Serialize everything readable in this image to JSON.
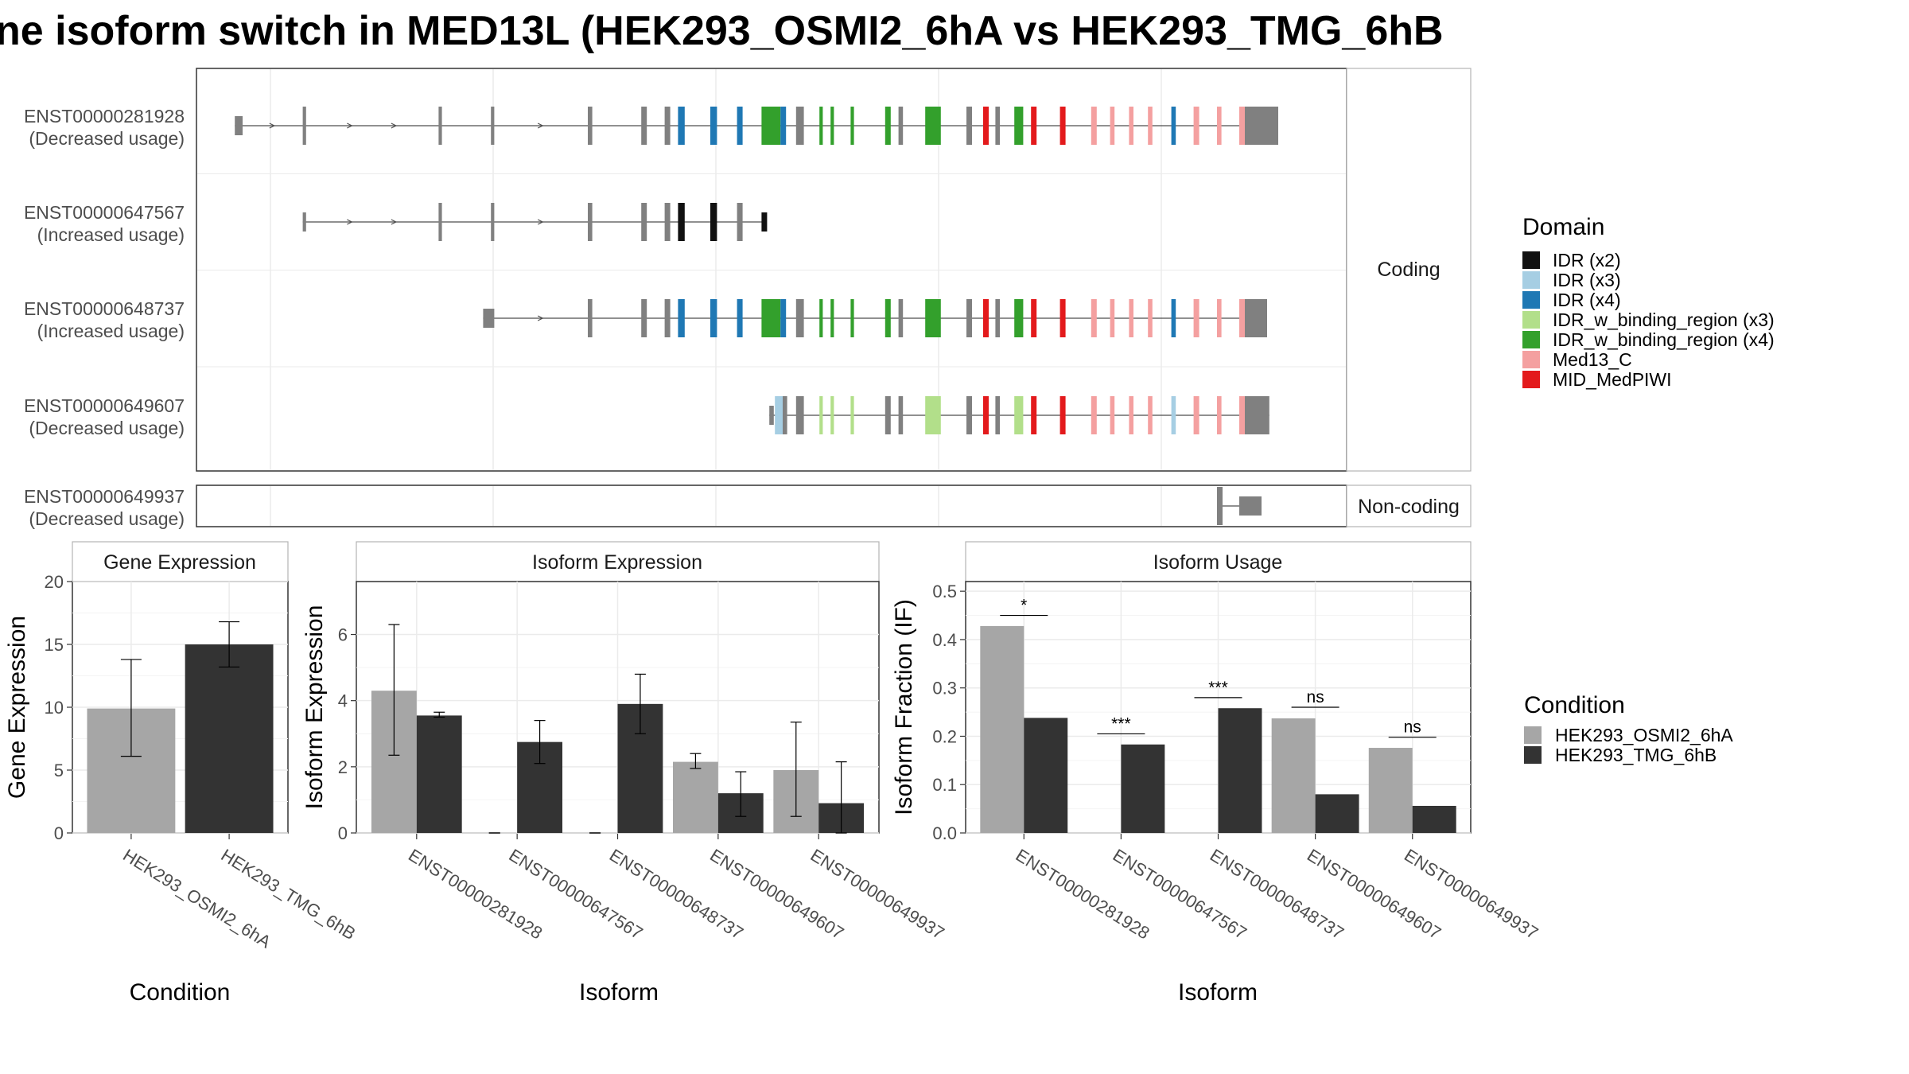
{
  "title": "ne isoform switch in MED13L (HEK293_OSMI2_6hA vs HEK293_TMG_6hB",
  "colors": {
    "condA": "#a6a6a6",
    "condB": "#333333",
    "exon": "#808080",
    "grid": "#ebebeb",
    "domains": {
      "IDR (x2)": "#111111",
      "IDR (x3)": "#a6cee3",
      "IDR (x4)": "#1f78b4",
      "IDR_w_binding_region (x3)": "#b2df8a",
      "IDR_w_binding_region (x4)": "#33a02c",
      "Med13_C": "#f4a0a0",
      "MID_MedPIWI": "#e31a1c"
    }
  },
  "structure": {
    "strips": {
      "coding": "Coding",
      "noncoding": "Non-coding"
    },
    "isoforms": [
      {
        "id": "ENST00000281928",
        "usage": "(Decreased usage)",
        "group": "coding",
        "tss": 0.018,
        "tes": 0.95,
        "utr5_end": 0.025,
        "utr3_start": 0.94,
        "exons": [
          [
            0.018,
            0.025,
            "n"
          ],
          [
            0.079,
            0.082,
            "n"
          ],
          [
            0.201,
            0.204,
            "n"
          ],
          [
            0.248,
            0.251,
            "n"
          ],
          [
            0.335,
            0.339,
            "n"
          ],
          [
            0.383,
            0.388,
            "n"
          ],
          [
            0.404,
            0.409,
            "n"
          ],
          [
            0.416,
            0.422,
            "IDR (x4)"
          ],
          [
            0.445,
            0.451,
            "IDR (x4)"
          ],
          [
            0.469,
            0.474,
            "IDR (x4)"
          ],
          [
            0.491,
            0.508,
            "IDR_w_binding_region (x4)"
          ],
          [
            0.508,
            0.513,
            "IDR (x4)"
          ],
          [
            0.522,
            0.529,
            "n"
          ],
          [
            0.543,
            0.546,
            "IDR_w_binding_region (x4)"
          ],
          [
            0.553,
            0.556,
            "IDR_w_binding_region (x4)"
          ],
          [
            0.571,
            0.574,
            "IDR_w_binding_region (x4)"
          ],
          [
            0.602,
            0.607,
            "IDR_w_binding_region (x4)"
          ],
          [
            0.614,
            0.618,
            "n"
          ],
          [
            0.638,
            0.652,
            "IDR_w_binding_region (x4)"
          ],
          [
            0.675,
            0.68,
            "n"
          ],
          [
            0.69,
            0.695,
            "MID_MedPIWI"
          ],
          [
            0.701,
            0.705,
            "n"
          ],
          [
            0.718,
            0.726,
            "IDR_w_binding_region (x4)"
          ],
          [
            0.733,
            0.738,
            "MID_MedPIWI"
          ],
          [
            0.759,
            0.764,
            "MID_MedPIWI"
          ],
          [
            0.787,
            0.792,
            "Med13_C"
          ],
          [
            0.804,
            0.808,
            "Med13_C"
          ],
          [
            0.821,
            0.825,
            "Med13_C"
          ],
          [
            0.838,
            0.842,
            "Med13_C"
          ],
          [
            0.859,
            0.863,
            "IDR (x4)"
          ],
          [
            0.879,
            0.884,
            "Med13_C"
          ],
          [
            0.9,
            0.904,
            "Med13_C"
          ],
          [
            0.92,
            0.925,
            "Med13_C"
          ],
          [
            0.925,
            0.955,
            "n"
          ]
        ]
      },
      {
        "id": "ENST00000647567",
        "usage": "(Increased usage)",
        "group": "coding",
        "tss": 0.079,
        "tes": 0.495,
        "utr5_end": 0.082,
        "utr3_start": 0.49,
        "exons": [
          [
            0.079,
            0.082,
            "n"
          ],
          [
            0.201,
            0.204,
            "n"
          ],
          [
            0.248,
            0.251,
            "n"
          ],
          [
            0.335,
            0.339,
            "n"
          ],
          [
            0.383,
            0.388,
            "n"
          ],
          [
            0.404,
            0.409,
            "n"
          ],
          [
            0.416,
            0.422,
            "IDR (x2)"
          ],
          [
            0.445,
            0.451,
            "IDR (x2)"
          ],
          [
            0.469,
            0.474,
            "n"
          ],
          [
            0.491,
            0.496,
            "IDR (x2)"
          ]
        ]
      },
      {
        "id": "ENST00000648737",
        "usage": "(Increased usage)",
        "group": "coding",
        "tss": 0.241,
        "tes": 0.945,
        "utr5_end": 0.251,
        "utr3_start": 0.93,
        "exons": [
          [
            0.241,
            0.251,
            "n"
          ],
          [
            0.335,
            0.339,
            "n"
          ],
          [
            0.383,
            0.388,
            "n"
          ],
          [
            0.404,
            0.409,
            "n"
          ],
          [
            0.416,
            0.422,
            "IDR (x4)"
          ],
          [
            0.445,
            0.451,
            "IDR (x4)"
          ],
          [
            0.469,
            0.474,
            "IDR (x4)"
          ],
          [
            0.491,
            0.508,
            "IDR_w_binding_region (x4)"
          ],
          [
            0.508,
            0.513,
            "IDR (x4)"
          ],
          [
            0.522,
            0.529,
            "n"
          ],
          [
            0.543,
            0.546,
            "IDR_w_binding_region (x4)"
          ],
          [
            0.553,
            0.556,
            "IDR_w_binding_region (x4)"
          ],
          [
            0.571,
            0.574,
            "IDR_w_binding_region (x4)"
          ],
          [
            0.602,
            0.607,
            "IDR_w_binding_region (x4)"
          ],
          [
            0.614,
            0.618,
            "n"
          ],
          [
            0.638,
            0.652,
            "IDR_w_binding_region (x4)"
          ],
          [
            0.675,
            0.68,
            "n"
          ],
          [
            0.69,
            0.695,
            "MID_MedPIWI"
          ],
          [
            0.701,
            0.705,
            "n"
          ],
          [
            0.718,
            0.726,
            "IDR_w_binding_region (x4)"
          ],
          [
            0.733,
            0.738,
            "MID_MedPIWI"
          ],
          [
            0.759,
            0.764,
            "MID_MedPIWI"
          ],
          [
            0.787,
            0.792,
            "Med13_C"
          ],
          [
            0.804,
            0.808,
            "Med13_C"
          ],
          [
            0.821,
            0.825,
            "Med13_C"
          ],
          [
            0.838,
            0.842,
            "Med13_C"
          ],
          [
            0.859,
            0.863,
            "IDR (x4)"
          ],
          [
            0.879,
            0.884,
            "Med13_C"
          ],
          [
            0.9,
            0.904,
            "Med13_C"
          ],
          [
            0.92,
            0.925,
            "Med13_C"
          ],
          [
            0.925,
            0.945,
            "n"
          ]
        ]
      },
      {
        "id": "ENST00000649607",
        "usage": "(Decreased usage)",
        "group": "coding",
        "tss": 0.498,
        "tes": 0.947,
        "utr5_end": 0.502,
        "utr3_start": 0.93,
        "exons": [
          [
            0.498,
            0.502,
            "n"
          ],
          [
            0.503,
            0.51,
            "IDR (x3)"
          ],
          [
            0.51,
            0.514,
            "n"
          ],
          [
            0.522,
            0.529,
            "n"
          ],
          [
            0.543,
            0.546,
            "IDR_w_binding_region (x3)"
          ],
          [
            0.553,
            0.556,
            "IDR_w_binding_region (x3)"
          ],
          [
            0.571,
            0.574,
            "IDR_w_binding_region (x3)"
          ],
          [
            0.602,
            0.607,
            "n"
          ],
          [
            0.614,
            0.618,
            "n"
          ],
          [
            0.638,
            0.652,
            "IDR_w_binding_region (x3)"
          ],
          [
            0.675,
            0.68,
            "n"
          ],
          [
            0.69,
            0.695,
            "MID_MedPIWI"
          ],
          [
            0.701,
            0.705,
            "n"
          ],
          [
            0.718,
            0.726,
            "IDR_w_binding_region (x3)"
          ],
          [
            0.733,
            0.738,
            "MID_MedPIWI"
          ],
          [
            0.759,
            0.764,
            "MID_MedPIWI"
          ],
          [
            0.787,
            0.792,
            "Med13_C"
          ],
          [
            0.804,
            0.808,
            "Med13_C"
          ],
          [
            0.821,
            0.825,
            "Med13_C"
          ],
          [
            0.838,
            0.842,
            "Med13_C"
          ],
          [
            0.859,
            0.863,
            "IDR (x3)"
          ],
          [
            0.879,
            0.884,
            "Med13_C"
          ],
          [
            0.9,
            0.904,
            "Med13_C"
          ],
          [
            0.92,
            0.925,
            "Med13_C"
          ],
          [
            0.925,
            0.947,
            "n"
          ]
        ]
      },
      {
        "id": "ENST00000649937",
        "usage": "(Decreased usage)",
        "group": "noncoding",
        "tss": 0.9,
        "tes": 0.94,
        "utr5_end": 0.9,
        "utr3_start": 0.9,
        "exons": [
          [
            0.9,
            0.905,
            "n"
          ],
          [
            0.92,
            0.94,
            "n"
          ]
        ]
      }
    ]
  },
  "chart_data": [
    {
      "type": "bar",
      "panel": "Gene Expression",
      "categories": [
        "HEK293_OSMI2_6hA",
        "HEK293_TMG_6hB"
      ],
      "values": [
        9.9,
        15.0
      ],
      "error_low": [
        6.1,
        13.2
      ],
      "error_high": [
        13.8,
        16.8
      ],
      "xlabel": "Condition",
      "ylabel": "Gene Expression",
      "ylim": [
        0,
        20
      ],
      "yticks": [
        "0",
        "5",
        "10",
        "15",
        "20"
      ]
    },
    {
      "type": "bar",
      "panel": "Isoform Expression",
      "categories": [
        "ENST00000281928",
        "ENST00000647567",
        "ENST00000648737",
        "ENST00000649607",
        "ENST00000649937"
      ],
      "series": [
        {
          "name": "HEK293_OSMI2_6hA",
          "values": [
            4.3,
            0.0,
            0.0,
            2.15,
            1.9
          ],
          "error_low": [
            2.35,
            0.0,
            0.0,
            1.95,
            0.5
          ],
          "error_high": [
            6.3,
            0.0,
            0.0,
            2.4,
            3.35
          ]
        },
        {
          "name": "HEK293_TMG_6hB",
          "values": [
            3.55,
            2.75,
            3.9,
            1.2,
            0.9
          ],
          "error_low": [
            3.5,
            2.1,
            3.0,
            0.5,
            0.0
          ],
          "error_high": [
            3.65,
            3.4,
            4.8,
            1.85,
            2.15
          ]
        }
      ],
      "xlabel": "Isoform",
      "ylabel": "Isoform Expression",
      "ylim": [
        0,
        7.6
      ],
      "yticks": [
        "0",
        "2",
        "4",
        "6"
      ]
    },
    {
      "type": "bar",
      "panel": "Isoform Usage",
      "categories": [
        "ENST00000281928",
        "ENST00000647567",
        "ENST00000648737",
        "ENST00000649607",
        "ENST00000649937"
      ],
      "series": [
        {
          "name": "HEK293_OSMI2_6hA",
          "values": [
            0.428,
            0.0,
            0.0,
            0.237,
            0.176
          ]
        },
        {
          "name": "HEK293_TMG_6hB",
          "values": [
            0.238,
            0.183,
            0.258,
            0.08,
            0.056
          ]
        }
      ],
      "significance": [
        "*",
        "***",
        "***",
        "ns",
        "ns"
      ],
      "significance_y": [
        0.45,
        0.205,
        0.28,
        0.26,
        0.198
      ],
      "xlabel": "Isoform",
      "ylabel": "Isoform Fraction (IF)",
      "ylim": [
        0,
        0.52
      ],
      "yticks": [
        "0.0",
        "0.1",
        "0.2",
        "0.3",
        "0.4",
        "0.5"
      ]
    }
  ],
  "legends": {
    "domain": {
      "title": "Domain",
      "items": [
        "IDR (x2)",
        "IDR (x3)",
        "IDR (x4)",
        "IDR_w_binding_region (x3)",
        "IDR_w_binding_region (x4)",
        "Med13_C",
        "MID_MedPIWI"
      ]
    },
    "condition": {
      "title": "Condition",
      "items": [
        "HEK293_OSMI2_6hA",
        "HEK293_TMG_6hB"
      ]
    }
  }
}
